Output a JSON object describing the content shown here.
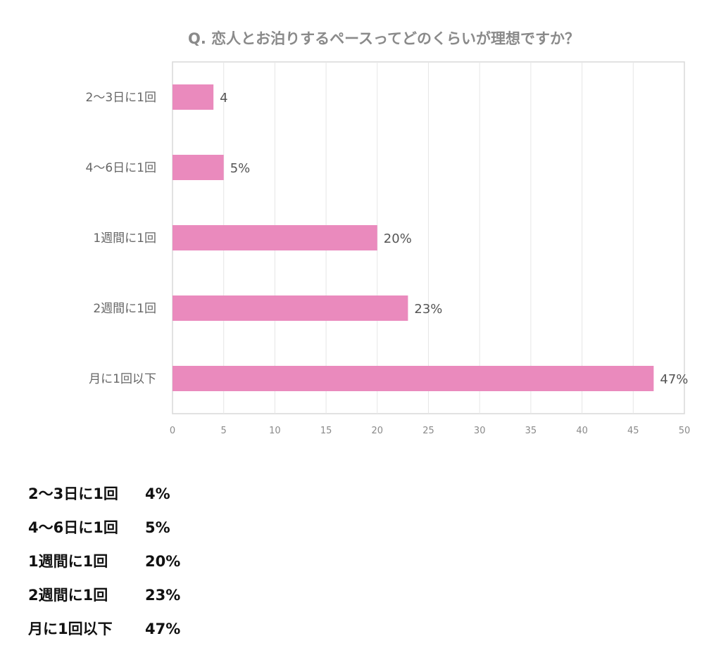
{
  "chart_data": {
    "type": "bar",
    "orientation": "horizontal",
    "title": "Q. 恋人とお泊りするペースってどのくらいが理想ですか？",
    "categories": [
      "2〜3日に1回",
      "4〜6日に1回",
      "1週間に1回",
      "2週間に1回",
      "月に1回以下"
    ],
    "values": [
      4,
      5,
      20,
      23,
      47
    ],
    "data_labels": [
      "4",
      "5%",
      "20%",
      "23%",
      "47%"
    ],
    "xlim": [
      0,
      50
    ],
    "x_ticks": [
      "0",
      "5",
      "10",
      "15",
      "20",
      "25",
      "30",
      "35",
      "40",
      "45",
      "50"
    ],
    "grid": true,
    "legend": "none",
    "bar_color": "#ea8abd"
  },
  "summary": [
    {
      "label": "2〜3日に1回",
      "value": "4%"
    },
    {
      "label": "4〜6日に1回",
      "value": "5%"
    },
    {
      "label": "1週間に1回",
      "value": "20%"
    },
    {
      "label": "2週間に1回",
      "value": "23%"
    },
    {
      "label": "月に1回以下",
      "value": "47%"
    }
  ]
}
